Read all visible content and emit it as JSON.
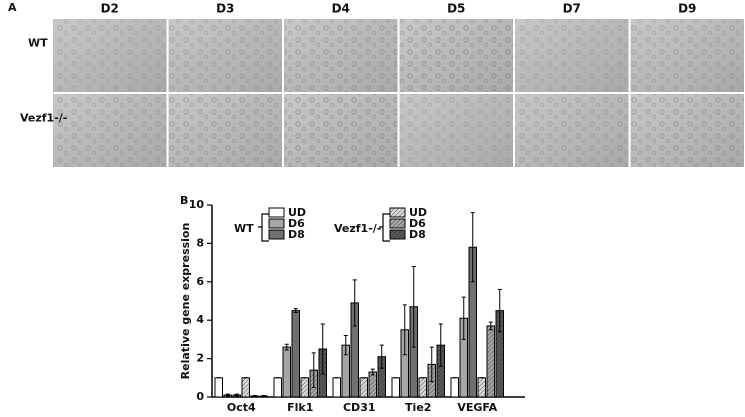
{
  "panel_a": {
    "label": "A",
    "columns": [
      "D2",
      "D3",
      "D4",
      "D5",
      "D7",
      "D9"
    ],
    "rows": [
      "WT",
      "Vezf1-/-"
    ]
  },
  "chart_data": {
    "type": "bar",
    "panel_label": "B",
    "y_label": "Relative gene expression",
    "categories": [
      "Oct4",
      "Flk1",
      "CD31",
      "Tie2",
      "VEGFA"
    ],
    "ylim": [
      0,
      10
    ],
    "yticks": [
      0,
      2,
      4,
      6,
      8,
      10
    ],
    "legend_groups": [
      "WT",
      "Vezf1-/-"
    ],
    "series": [
      {
        "name": "UD",
        "group": 0,
        "color": "#ffffff",
        "hatch": false,
        "values": [
          1,
          1,
          1,
          1,
          1
        ],
        "errors": [
          0,
          0,
          0,
          0,
          0
        ]
      },
      {
        "name": "D6",
        "group": 0,
        "color": "#a6a6a6",
        "hatch": false,
        "values": [
          0.1,
          2.6,
          2.7,
          3.5,
          4.1
        ],
        "errors": [
          0.05,
          0.15,
          0.5,
          1.3,
          1.1
        ]
      },
      {
        "name": "D8",
        "group": 0,
        "color": "#707070",
        "hatch": false,
        "values": [
          0.1,
          4.5,
          4.9,
          4.7,
          7.8
        ],
        "errors": [
          0.05,
          0.1,
          1.2,
          2.1,
          1.8
        ]
      },
      {
        "name": "UD",
        "group": 1,
        "color": "#d9d9d9",
        "hatch": true,
        "values": [
          1,
          1,
          1,
          1,
          1
        ],
        "errors": [
          0,
          0,
          0,
          0,
          0
        ]
      },
      {
        "name": "D6",
        "group": 1,
        "color": "#a6a6a6",
        "hatch": true,
        "values": [
          0.05,
          1.4,
          1.3,
          1.7,
          3.7
        ],
        "errors": [
          0.03,
          0.9,
          0.15,
          0.9,
          0.2
        ]
      },
      {
        "name": "D8",
        "group": 1,
        "color": "#595959",
        "hatch": true,
        "values": [
          0.05,
          2.5,
          2.1,
          2.7,
          4.5
        ],
        "errors": [
          0.03,
          1.3,
          0.6,
          1.1,
          1.1
        ]
      }
    ]
  }
}
